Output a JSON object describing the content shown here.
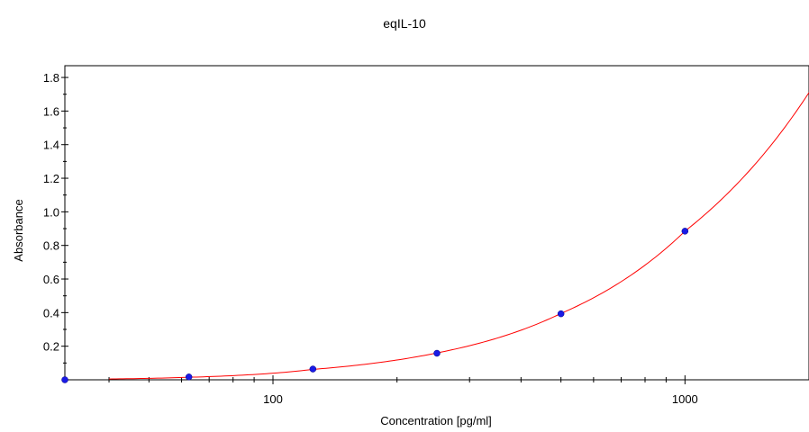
{
  "chart_data": {
    "type": "scatter",
    "title": "eqIL-10",
    "xlabel": "Concentration [pg/ml]",
    "ylabel": "Absorbance",
    "x_scale": "log",
    "xlim": [
      31.25,
      2000
    ],
    "ylim": [
      0,
      1.87
    ],
    "x_tick_labels": [
      "100",
      "1000"
    ],
    "y_tick_labels": [
      "0.2",
      "0.4",
      "0.6",
      "0.8",
      "1.0",
      "1.2",
      "1.4",
      "1.6",
      "1.8"
    ],
    "grid": false,
    "series": [
      {
        "type": "scatter",
        "color": "#1a1ae6",
        "points": [
          {
            "x": 31.25,
            "y": 0.0
          },
          {
            "x": 62.5,
            "y": 0.017
          },
          {
            "x": 125,
            "y": 0.064
          },
          {
            "x": 250,
            "y": 0.158
          },
          {
            "x": 500,
            "y": 0.393
          },
          {
            "x": 1000,
            "y": 0.885
          }
        ]
      },
      {
        "type": "line",
        "color": "#ff0000",
        "points": [
          {
            "x": 40,
            "y": 0.005
          },
          {
            "x": 62.5,
            "y": 0.015
          },
          {
            "x": 125,
            "y": 0.062
          },
          {
            "x": 250,
            "y": 0.16
          },
          {
            "x": 500,
            "y": 0.395
          },
          {
            "x": 1000,
            "y": 0.885
          },
          {
            "x": 1500,
            "y": 1.3
          },
          {
            "x": 2000,
            "y": 1.71
          }
        ]
      }
    ]
  }
}
